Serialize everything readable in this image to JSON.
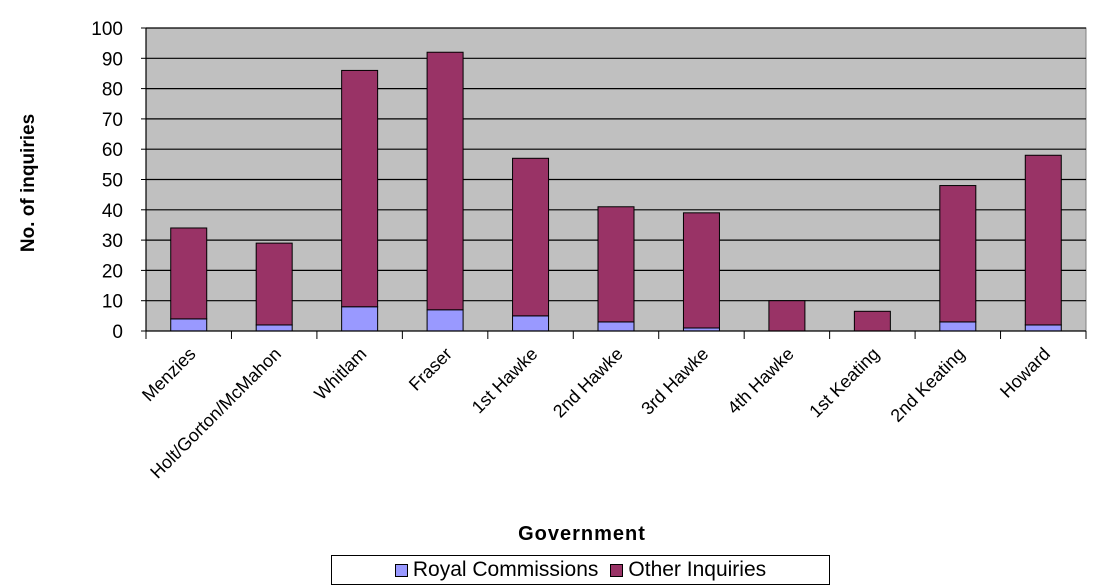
{
  "chart_data": {
    "type": "bar",
    "stacked": true,
    "title": "",
    "xlabel": "Government",
    "ylabel": "No. of inquiries",
    "ylim": [
      0,
      100
    ],
    "yticks": [
      0,
      10,
      20,
      30,
      40,
      50,
      60,
      70,
      80,
      90,
      100
    ],
    "grid": true,
    "legend_position": "bottom",
    "categories": [
      "Menzies",
      "Holt/Gorton/McMahon",
      "Whitlam",
      "Fraser",
      "1st Hawke",
      "2nd Hawke",
      "3rd Hawke",
      "4th Hawke",
      "1st Keating",
      "2nd Keating",
      "Howard"
    ],
    "series": [
      {
        "name": "Royal Commissions",
        "color": "#9999ff",
        "values": [
          4,
          2,
          8,
          7,
          5,
          3,
          1,
          0,
          0,
          3,
          2
        ]
      },
      {
        "name": "Other Inquiries",
        "color": "#993366",
        "values": [
          30,
          27,
          78,
          85,
          52,
          38,
          38,
          10,
          6.5,
          45,
          56
        ]
      }
    ],
    "plot_background": "#c0c0c0"
  }
}
